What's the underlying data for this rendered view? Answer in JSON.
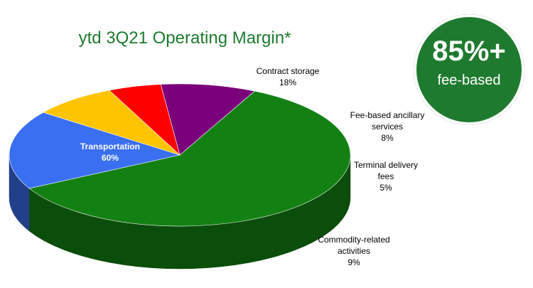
{
  "badge": {
    "value": "85%+",
    "caption": "fee-based"
  },
  "chart_data": {
    "type": "pie",
    "title": "ytd 3Q21 Operating Margin*",
    "slices": [
      {
        "label": [
          "Transportation"
        ],
        "value": 60,
        "display": "60%",
        "color": "#138013",
        "dark": "#0b4d0b"
      },
      {
        "label": [
          "Contract storage"
        ],
        "value": 18,
        "display": "18%",
        "color": "#3a6ff2",
        "dark": "#223f8a"
      },
      {
        "label": [
          "Fee-based ancillary",
          "services"
        ],
        "value": 8,
        "display": "8%",
        "color": "#ffc400",
        "dark": "#a07a00"
      },
      {
        "label": [
          "Terminal delivery",
          "fees"
        ],
        "value": 5,
        "display": "5%",
        "color": "#ff0000",
        "dark": "#8a0000"
      },
      {
        "label": [
          "Commodity-related",
          "activities"
        ],
        "value": 9,
        "display": "9%",
        "color": "#7b007b",
        "dark": "#3e003e"
      }
    ]
  }
}
